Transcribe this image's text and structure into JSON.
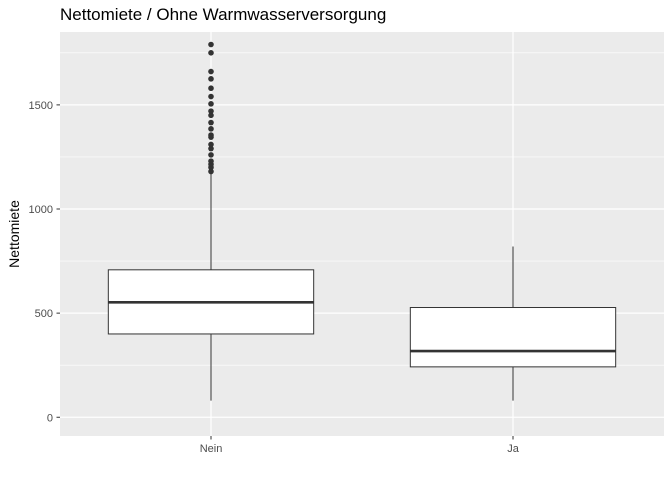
{
  "chart_data": {
    "type": "box",
    "title": "Nettomiete / Ohne Warmwasserversorgung",
    "xlabel": "",
    "ylabel": "Nettomiete",
    "categories": [
      "Nein",
      "Ja"
    ],
    "ylim": [
      -90,
      1850
    ],
    "yticks": [
      0,
      500,
      1000,
      1500
    ],
    "grid": true,
    "legend": "none",
    "boxes": [
      {
        "category": "Nein",
        "whisker_low": 80,
        "q1": 400,
        "median": 552,
        "q3": 708,
        "whisker_high": 1170,
        "outliers": [
          1180,
          1200,
          1215,
          1230,
          1260,
          1290,
          1310,
          1345,
          1355,
          1385,
          1415,
          1450,
          1470,
          1505,
          1540,
          1580,
          1625,
          1660,
          1750,
          1790
        ]
      },
      {
        "category": "Ja",
        "whisker_low": 80,
        "q1": 242,
        "median": 318,
        "q3": 527,
        "whisker_high": 820,
        "outliers": []
      }
    ]
  },
  "colors": {
    "panel_background": "#ebebeb",
    "grid_major": "#ffffff",
    "box_fill": "#ffffff",
    "box_line": "#333333",
    "outlier": "#333333",
    "tick": "#333333",
    "tick_label": "#4d4d4d"
  }
}
